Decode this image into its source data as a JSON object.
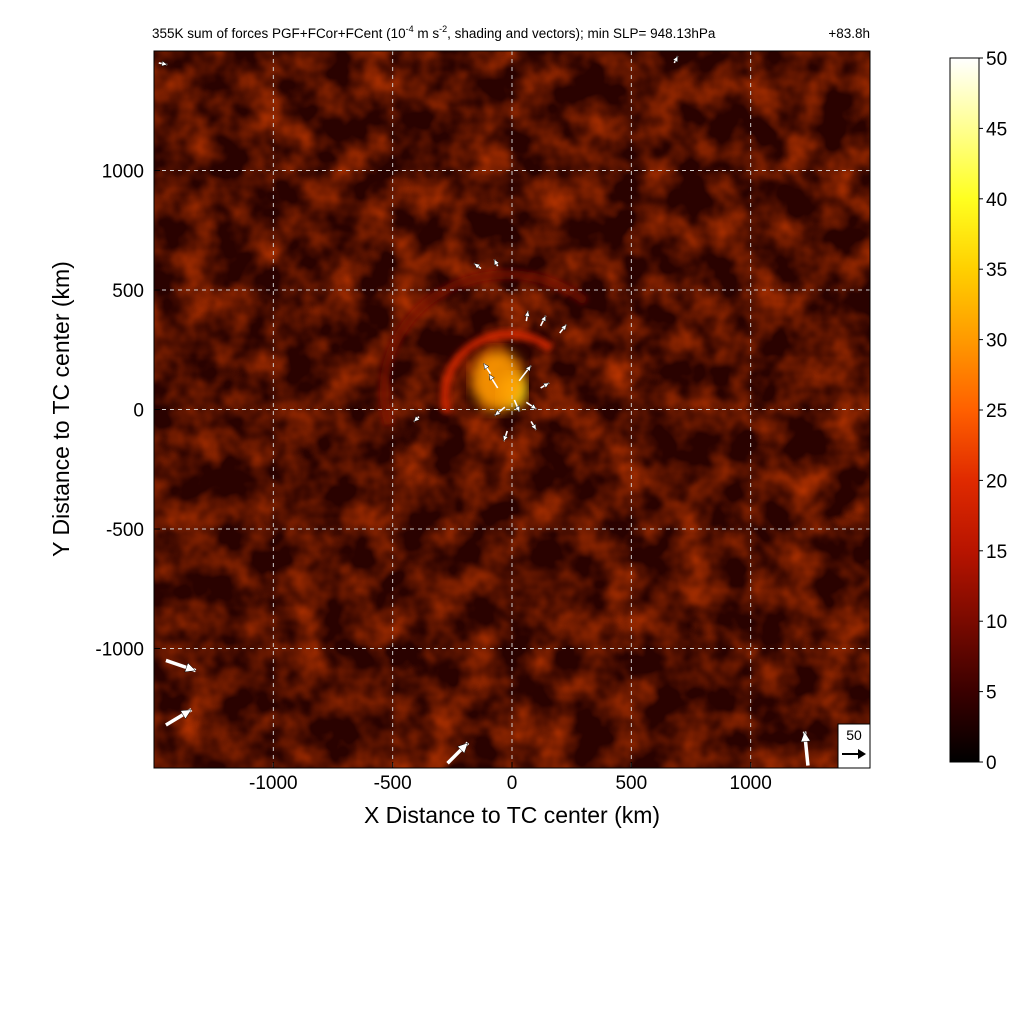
{
  "chart_data": {
    "type": "heatmap",
    "title": {
      "prefix": "355K sum of forces PGF+FCor+FCent (10",
      "exp1": "-4",
      "mid": " m s",
      "exp2": "-2",
      "suffix": ", shading and vectors); min SLP= 948.13hPa",
      "time": "+83.8h"
    },
    "xlabel": "X Distance to TC center (km)",
    "ylabel": "Y Distance to TC center (km)",
    "xlim": [
      -1500,
      1500
    ],
    "ylim": [
      -1500,
      1500
    ],
    "xticks": [
      -1000,
      -500,
      0,
      500,
      1000
    ],
    "yticks": [
      -1000,
      -500,
      0,
      500,
      1000
    ],
    "grid": true,
    "colorbar": {
      "min": 0,
      "max": 50,
      "ticks": [
        0,
        5,
        10,
        15,
        20,
        25,
        30,
        35,
        40,
        45,
        50
      ],
      "colors": [
        "#000000",
        "#3a0000",
        "#7a0a00",
        "#b81400",
        "#e02a00",
        "#ff6000",
        "#ff9a00",
        "#ffd000",
        "#ffff20",
        "#ffff90",
        "#ffffff"
      ]
    },
    "reference_vector": {
      "magnitude": 50,
      "label": "50"
    },
    "features": [
      {
        "name": "core-maximum",
        "x": 0,
        "y": 80,
        "value": 38
      },
      {
        "name": "core-ring",
        "x": -60,
        "y": 120,
        "value": 32
      },
      {
        "name": "spiral-band-inner",
        "x": 100,
        "y": 250,
        "value": 18
      },
      {
        "name": "spiral-band-outer",
        "x": -250,
        "y": 450,
        "value": 12
      },
      {
        "name": "background",
        "value": 6
      }
    ],
    "vectors": [
      {
        "x": 30,
        "y": 120,
        "u": 14,
        "v": 18
      },
      {
        "x": -60,
        "y": 90,
        "u": -10,
        "v": 16
      },
      {
        "x": 10,
        "y": 40,
        "u": 6,
        "v": -14
      },
      {
        "x": -30,
        "y": 10,
        "u": -12,
        "v": -10
      },
      {
        "x": 60,
        "y": 30,
        "u": 12,
        "v": -8
      },
      {
        "x": -90,
        "y": 150,
        "u": -8,
        "v": 12
      },
      {
        "x": 120,
        "y": 90,
        "u": 10,
        "v": 6
      },
      {
        "x": 80,
        "y": -50,
        "u": 6,
        "v": -10
      },
      {
        "x": -20,
        "y": -90,
        "u": -4,
        "v": -12
      },
      {
        "x": 120,
        "y": 350,
        "u": 6,
        "v": 12
      },
      {
        "x": 60,
        "y": 370,
        "u": 2,
        "v": 12
      },
      {
        "x": 200,
        "y": 320,
        "u": 8,
        "v": 10
      },
      {
        "x": -130,
        "y": 590,
        "u": -8,
        "v": 6
      },
      {
        "x": -60,
        "y": 600,
        "u": -4,
        "v": 8
      },
      {
        "x": -390,
        "y": -30,
        "u": -6,
        "v": -6
      },
      {
        "x": -1480,
        "y": 1450,
        "u": 10,
        "v": -2
      },
      {
        "x": -1450,
        "y": -1050,
        "u": 35,
        "v": -12
      },
      {
        "x": -1450,
        "y": -1320,
        "u": 30,
        "v": 18
      },
      {
        "x": -270,
        "y": -1480,
        "u": 24,
        "v": 24
      },
      {
        "x": 1240,
        "y": -1490,
        "u": -4,
        "v": 40
      },
      {
        "x": 680,
        "y": 1450,
        "u": 4,
        "v": 8
      }
    ]
  }
}
